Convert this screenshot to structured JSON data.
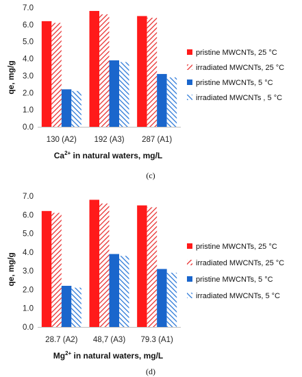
{
  "colors": {
    "red": "#ff1a1a",
    "blue": "#1a66cc",
    "hatch_red": "#e83030",
    "hatch_blue": "#2a78d8"
  },
  "legend_labels": [
    "pristine MWCNTs, 25 °C",
    "irradiated MWCNTs, 25 °C",
    "pristine MWCNTs, 5 °C",
    "irradiated MWCNTs , 5 °C"
  ],
  "legend_labels_d": [
    "pristine MWCNTs, 25 °C",
    "irradiated MWCNTs, 25 °C",
    "pristine MWCNTs, 5 °C",
    "irradiated MWCNTs, 5 °C"
  ],
  "chart_data": [
    {
      "type": "bar",
      "panel_label": "(c)",
      "categories": [
        "130 (A2)",
        "192 (A3)",
        "287 (A1)"
      ],
      "xlabel_main": "Ca",
      "xlabel_sup": "2+",
      "xlabel_rest": " in natural waters, mg/L",
      "ylabel": "qe, mg/g",
      "ylim": [
        0,
        7
      ],
      "yticks": [
        "0.0",
        "1.0",
        "2.0",
        "3.0",
        "4.0",
        "5.0",
        "6.0",
        "7.0"
      ],
      "series": [
        {
          "name": "pristine MWCNTs, 25 °C",
          "values": [
            6.2,
            6.8,
            6.5
          ]
        },
        {
          "name": "irradiated MWCNTs, 25 °C",
          "values": [
            6.1,
            6.6,
            6.4
          ]
        },
        {
          "name": "pristine MWCNTs, 5 °C",
          "values": [
            2.2,
            3.9,
            3.1
          ]
        },
        {
          "name": "irradiated MWCNTs , 5 °C",
          "values": [
            2.1,
            3.8,
            2.9
          ]
        }
      ],
      "legend": "right",
      "grid": false
    },
    {
      "type": "bar",
      "panel_label": "(d)",
      "categories": [
        "28.7 (A2)",
        "48,7 (A3)",
        "79.3 (A1)"
      ],
      "xlabel_main": "Mg",
      "xlabel_sup": "2+",
      "xlabel_rest": " in natural waters, mg/L",
      "ylabel": "qe, mg/g",
      "ylim": [
        0,
        7
      ],
      "yticks": [
        "0.0",
        "1.0",
        "2.0",
        "3.0",
        "4.0",
        "5.0",
        "6.0",
        "7.0"
      ],
      "series": [
        {
          "name": "pristine MWCNTs, 25 °C",
          "values": [
            6.2,
            6.8,
            6.5
          ]
        },
        {
          "name": "irradiated MWCNTs, 25 °C",
          "values": [
            6.1,
            6.6,
            6.4
          ]
        },
        {
          "name": "pristine MWCNTs, 5 °C",
          "values": [
            2.2,
            3.9,
            3.1
          ]
        },
        {
          "name": "irradiated MWCNTs, 5 °C",
          "values": [
            2.1,
            3.8,
            2.9
          ]
        }
      ],
      "legend": "right",
      "grid": false
    }
  ]
}
